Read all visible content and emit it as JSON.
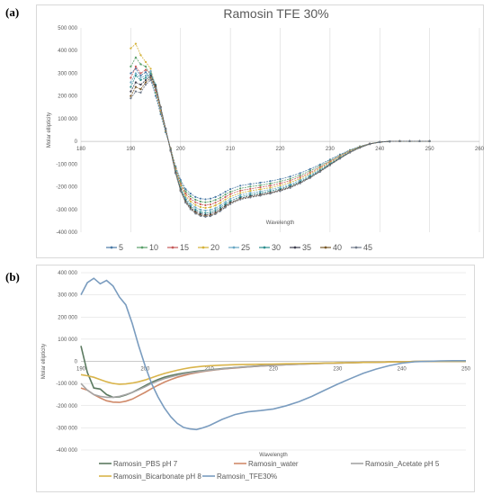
{
  "panel_a_label": "(a)",
  "panel_b_label": "(b)",
  "colors": {
    "grid": "#d9d9d9",
    "axis": "#bfbfbf",
    "text": "#595959"
  },
  "chart_data": [
    {
      "type": "line",
      "title": "Ramosin TFE 30%",
      "xlabel": "Wavelength",
      "ylabel": "Molar ellipticity",
      "xlim": [
        180,
        260
      ],
      "ylim": [
        -400000,
        500000
      ],
      "xticks": [
        180,
        190,
        200,
        210,
        220,
        230,
        240,
        250,
        260
      ],
      "yticks": [
        500000,
        400000,
        300000,
        200000,
        100000,
        0,
        -100000,
        -200000,
        -300000,
        -400000
      ],
      "ytick_labels": [
        "500 000",
        "400 000",
        "300 000",
        "200 000",
        "100 000",
        "0",
        "-100 000",
        "-200 000",
        "-300 000",
        "-400 000"
      ],
      "grid": "vertical",
      "legend_position": "bottom",
      "x": [
        190,
        191,
        192,
        193,
        194,
        195,
        196,
        197,
        198,
        199,
        200,
        201,
        202,
        203,
        204,
        205,
        206,
        207,
        208,
        209,
        210,
        212,
        214,
        216,
        218,
        220,
        222,
        224,
        226,
        228,
        230,
        232,
        234,
        236,
        238,
        240,
        242,
        244,
        246,
        248,
        250
      ],
      "series": [
        {
          "name": "5",
          "color": "#4a7aa6",
          "values": [
            300000,
            320000,
            290000,
            305000,
            270000,
            200000,
            120000,
            40000,
            -30000,
            -110000,
            -170000,
            -210000,
            -230000,
            -245000,
            -252000,
            -255000,
            -252000,
            -245000,
            -235000,
            -222000,
            -210000,
            -195000,
            -188000,
            -182000,
            -175000,
            -166000,
            -155000,
            -140000,
            -122000,
            -102000,
            -80000,
            -58000,
            -38000,
            -22000,
            -10000,
            -3000,
            0,
            1000,
            1000,
            1000,
            1000
          ]
        },
        {
          "name": "10",
          "color": "#5aa06a",
          "values": [
            330000,
            370000,
            340000,
            330000,
            290000,
            215000,
            130000,
            45000,
            -30000,
            -115000,
            -180000,
            -220000,
            -242000,
            -257000,
            -265000,
            -268000,
            -265000,
            -258000,
            -248000,
            -234000,
            -222000,
            -207000,
            -199000,
            -193000,
            -186000,
            -176000,
            -165000,
            -149000,
            -130000,
            -108000,
            -85000,
            -62000,
            -40000,
            -23000,
            -10000,
            -3000,
            0,
            1000,
            1000,
            1000,
            1000
          ]
        },
        {
          "name": "15",
          "color": "#c65a5a",
          "values": [
            280000,
            330000,
            300000,
            315000,
            300000,
            225000,
            135000,
            48000,
            -32000,
            -120000,
            -188000,
            -230000,
            -253000,
            -268000,
            -277000,
            -281000,
            -278000,
            -270000,
            -259000,
            -245000,
            -232000,
            -217000,
            -209000,
            -202000,
            -195000,
            -185000,
            -173000,
            -157000,
            -137000,
            -114000,
            -89000,
            -65000,
            -42000,
            -24000,
            -10000,
            -3000,
            0,
            1000,
            1000,
            1000,
            1000
          ]
        },
        {
          "name": "20",
          "color": "#d4b23a",
          "values": [
            410000,
            430000,
            380000,
            350000,
            320000,
            235000,
            140000,
            50000,
            -35000,
            -125000,
            -195000,
            -240000,
            -264000,
            -280000,
            -289000,
            -293000,
            -290000,
            -282000,
            -271000,
            -256000,
            -243000,
            -227000,
            -218000,
            -211000,
            -204000,
            -194000,
            -181000,
            -164000,
            -143000,
            -119000,
            -93000,
            -68000,
            -44000,
            -25000,
            -11000,
            -3000,
            0,
            1000,
            1000,
            1000,
            1000
          ]
        },
        {
          "name": "25",
          "color": "#6aa8c4",
          "values": [
            260000,
            300000,
            280000,
            290000,
            310000,
            245000,
            145000,
            52000,
            -36000,
            -130000,
            -202000,
            -249000,
            -275000,
            -291000,
            -301000,
            -305000,
            -302000,
            -294000,
            -282000,
            -267000,
            -253000,
            -236000,
            -227000,
            -220000,
            -212000,
            -202000,
            -189000,
            -171000,
            -149000,
            -124000,
            -97000,
            -70000,
            -46000,
            -26000,
            -11000,
            -3000,
            0,
            1000,
            1000,
            1000,
            1000
          ]
        },
        {
          "name": "30",
          "color": "#2f8f8f",
          "values": [
            240000,
            290000,
            270000,
            280000,
            300000,
            250000,
            150000,
            55000,
            -38000,
            -134000,
            -208000,
            -257000,
            -284000,
            -301000,
            -311000,
            -315000,
            -312000,
            -303000,
            -291000,
            -276000,
            -262000,
            -244000,
            -235000,
            -227000,
            -219000,
            -209000,
            -195000,
            -177000,
            -154000,
            -128000,
            -100000,
            -72000,
            -47000,
            -27000,
            -11000,
            -3000,
            0,
            1000,
            1000,
            1000,
            1000
          ]
        },
        {
          "name": "35",
          "color": "#404050",
          "values": [
            220000,
            260000,
            250000,
            270000,
            290000,
            245000,
            152000,
            57000,
            -40000,
            -137000,
            -213000,
            -263000,
            -291000,
            -309000,
            -319000,
            -323000,
            -320000,
            -311000,
            -299000,
            -283000,
            -269000,
            -250000,
            -241000,
            -233000,
            -225000,
            -214000,
            -200000,
            -181000,
            -158000,
            -131000,
            -102000,
            -74000,
            -48000,
            -27000,
            -11000,
            -3000,
            0,
            1000,
            1000,
            1000,
            1000
          ]
        },
        {
          "name": "40",
          "color": "#7a5a2a",
          "values": [
            200000,
            240000,
            230000,
            260000,
            280000,
            240000,
            150000,
            56000,
            -41000,
            -139000,
            -216000,
            -267000,
            -296000,
            -314000,
            -325000,
            -329000,
            -326000,
            -317000,
            -304000,
            -288000,
            -273000,
            -254000,
            -245000,
            -237000,
            -228000,
            -217000,
            -203000,
            -184000,
            -160000,
            -133000,
            -104000,
            -75000,
            -49000,
            -28000,
            -12000,
            -3000,
            0,
            1000,
            1000,
            1000,
            1000
          ]
        },
        {
          "name": "45",
          "color": "#707a8a",
          "values": [
            190000,
            220000,
            215000,
            250000,
            270000,
            235000,
            148000,
            55000,
            -42000,
            -141000,
            -219000,
            -270000,
            -299000,
            -318000,
            -328000,
            -332000,
            -329000,
            -320000,
            -307000,
            -291000,
            -276000,
            -256000,
            -247000,
            -239000,
            -230000,
            -219000,
            -205000,
            -185000,
            -161000,
            -134000,
            -105000,
            -76000,
            -49000,
            -28000,
            -12000,
            -3000,
            0,
            1000,
            1000,
            1000,
            1000
          ]
        }
      ]
    },
    {
      "type": "line",
      "title": "",
      "xlabel": "Wavelength",
      "ylabel": "Molar ellipticity",
      "xlim": [
        190,
        250
      ],
      "ylim": [
        -400000,
        400000
      ],
      "xticks": [
        190,
        200,
        210,
        220,
        230,
        240,
        250
      ],
      "yticks": [
        400000,
        300000,
        200000,
        100000,
        0,
        -100000,
        -200000,
        -300000,
        -400000
      ],
      "ytick_labels": [
        "400 000",
        "300 000",
        "200 000",
        "100 000",
        "0",
        "-100 000",
        "-200 000",
        "-300 000",
        "-400 000"
      ],
      "grid": "horizontal",
      "legend_position": "bottom",
      "x": [
        190,
        191,
        192,
        193,
        194,
        195,
        196,
        197,
        198,
        199,
        200,
        201,
        202,
        203,
        204,
        205,
        206,
        207,
        208,
        209,
        210,
        212,
        214,
        216,
        218,
        220,
        222,
        224,
        226,
        228,
        230,
        232,
        234,
        236,
        238,
        240,
        242,
        244,
        246,
        248,
        250
      ],
      "series": [
        {
          "name": "Ramosin_PBS pH 7",
          "color": "#5b7a60",
          "values": [
            70000,
            -50000,
            -120000,
            -125000,
            -150000,
            -162000,
            -160000,
            -152000,
            -140000,
            -125000,
            -110000,
            -95000,
            -82000,
            -72000,
            -64000,
            -58000,
            -53000,
            -49000,
            -45000,
            -42000,
            -39000,
            -33000,
            -28000,
            -24000,
            -20000,
            -17000,
            -14000,
            -12000,
            -10000,
            -8000,
            -7000,
            -6000,
            -5000,
            -4000,
            -3000,
            -2000,
            -1000,
            0,
            0,
            0,
            0
          ]
        },
        {
          "name": "Ramosin_water",
          "color": "#d08a6a",
          "values": [
            -120000,
            -130000,
            -150000,
            -165000,
            -178000,
            -184000,
            -185000,
            -180000,
            -170000,
            -155000,
            -140000,
            -123000,
            -108000,
            -94000,
            -82000,
            -72000,
            -64000,
            -57000,
            -51000,
            -46000,
            -42000,
            -35000,
            -30000,
            -25000,
            -21000,
            -18000,
            -15000,
            -13000,
            -11000,
            -9000,
            -8000,
            -6000,
            -5000,
            -4000,
            -3000,
            -2000,
            -1000,
            0,
            0,
            0,
            0
          ]
        },
        {
          "name": "Ramosin_Acetate pH 5",
          "color": "#a5a5a5",
          "values": [
            -100000,
            -130000,
            -150000,
            -158000,
            -162000,
            -162000,
            -158000,
            -150000,
            -140000,
            -128000,
            -115000,
            -100000,
            -88000,
            -78000,
            -70000,
            -63000,
            -57000,
            -52000,
            -48000,
            -44000,
            -40000,
            -34000,
            -29000,
            -25000,
            -21000,
            -18000,
            -15000,
            -13000,
            -11000,
            -9000,
            -8000,
            -6000,
            -5000,
            -4000,
            -3000,
            -2000,
            -1000,
            0,
            0,
            0,
            0
          ]
        },
        {
          "name": "Ramosin_Bicarbonate pH 8",
          "color": "#d9b44a",
          "values": [
            -60000,
            -65000,
            -72000,
            -82000,
            -92000,
            -100000,
            -103000,
            -102000,
            -98000,
            -92000,
            -84000,
            -74000,
            -64000,
            -55000,
            -47000,
            -40000,
            -34000,
            -29000,
            -25000,
            -22000,
            -20000,
            -17000,
            -15000,
            -14000,
            -13000,
            -12000,
            -11000,
            -10000,
            -9000,
            -8000,
            -7000,
            -6000,
            -5000,
            -4000,
            -3000,
            -2000,
            -1000,
            0,
            0,
            0,
            0
          ]
        },
        {
          "name": "Ramosin_TFE30%",
          "color": "#7a9cbf",
          "values": [
            300000,
            355000,
            375000,
            350000,
            365000,
            340000,
            290000,
            255000,
            170000,
            70000,
            -20000,
            -100000,
            -160000,
            -210000,
            -250000,
            -280000,
            -298000,
            -305000,
            -308000,
            -300000,
            -290000,
            -262000,
            -240000,
            -228000,
            -222000,
            -215000,
            -200000,
            -182000,
            -158000,
            -130000,
            -103000,
            -78000,
            -54000,
            -35000,
            -20000,
            -8000,
            -2000,
            0,
            2000,
            3000,
            3000
          ]
        }
      ]
    }
  ]
}
